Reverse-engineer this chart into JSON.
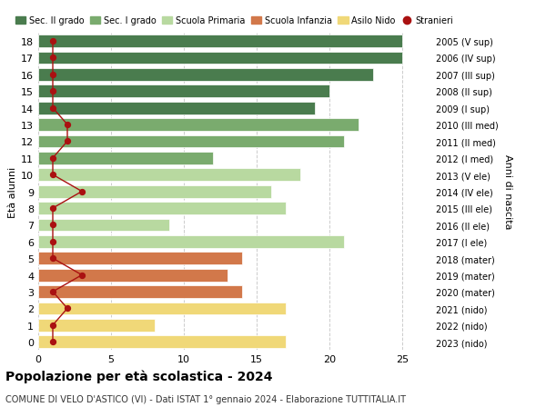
{
  "ages": [
    18,
    17,
    16,
    15,
    14,
    13,
    12,
    11,
    10,
    9,
    8,
    7,
    6,
    5,
    4,
    3,
    2,
    1,
    0
  ],
  "right_labels": [
    "2005 (V sup)",
    "2006 (IV sup)",
    "2007 (III sup)",
    "2008 (II sup)",
    "2009 (I sup)",
    "2010 (III med)",
    "2011 (II med)",
    "2012 (I med)",
    "2013 (V ele)",
    "2014 (IV ele)",
    "2015 (III ele)",
    "2016 (II ele)",
    "2017 (I ele)",
    "2018 (mater)",
    "2019 (mater)",
    "2020 (mater)",
    "2021 (nido)",
    "2022 (nido)",
    "2023 (nido)"
  ],
  "bar_values": [
    25,
    25,
    23,
    20,
    19,
    22,
    21,
    12,
    18,
    16,
    17,
    9,
    21,
    14,
    13,
    14,
    17,
    8,
    17
  ],
  "bar_colors": [
    "#4a7c4e",
    "#4a7c4e",
    "#4a7c4e",
    "#4a7c4e",
    "#4a7c4e",
    "#7aab6e",
    "#7aab6e",
    "#7aab6e",
    "#b8d9a0",
    "#b8d9a0",
    "#b8d9a0",
    "#b8d9a0",
    "#b8d9a0",
    "#d2784a",
    "#d2784a",
    "#d2784a",
    "#f0d878",
    "#f0d878",
    "#f0d878"
  ],
  "stranieri_values": [
    1,
    1,
    1,
    1,
    1,
    2,
    2,
    1,
    1,
    3,
    1,
    1,
    1,
    1,
    3,
    1,
    2,
    1,
    1
  ],
  "stranieri_color": "#aa1111",
  "title": "Popolazione per età scolastica - 2024",
  "subtitle": "COMUNE DI VELO D'ASTICO (VI) - Dati ISTAT 1° gennaio 2024 - Elaborazione TUTTITALIA.IT",
  "ylabel_left": "Età alunni",
  "ylabel_right": "Anni di nascita",
  "xlim": [
    0,
    27
  ],
  "xticks": [
    0,
    5,
    10,
    15,
    20,
    25
  ],
  "legend_items": [
    {
      "label": "Sec. II grado",
      "color": "#4a7c4e"
    },
    {
      "label": "Sec. I grado",
      "color": "#7aab6e"
    },
    {
      "label": "Scuola Primaria",
      "color": "#b8d9a0"
    },
    {
      "label": "Scuola Infanzia",
      "color": "#d2784a"
    },
    {
      "label": "Asilo Nido",
      "color": "#f0d878"
    },
    {
      "label": "Stranieri",
      "color": "#aa1111"
    }
  ],
  "bg_color": "#ffffff",
  "bar_edge_color": "#ffffff",
  "grid_color": "#cccccc"
}
